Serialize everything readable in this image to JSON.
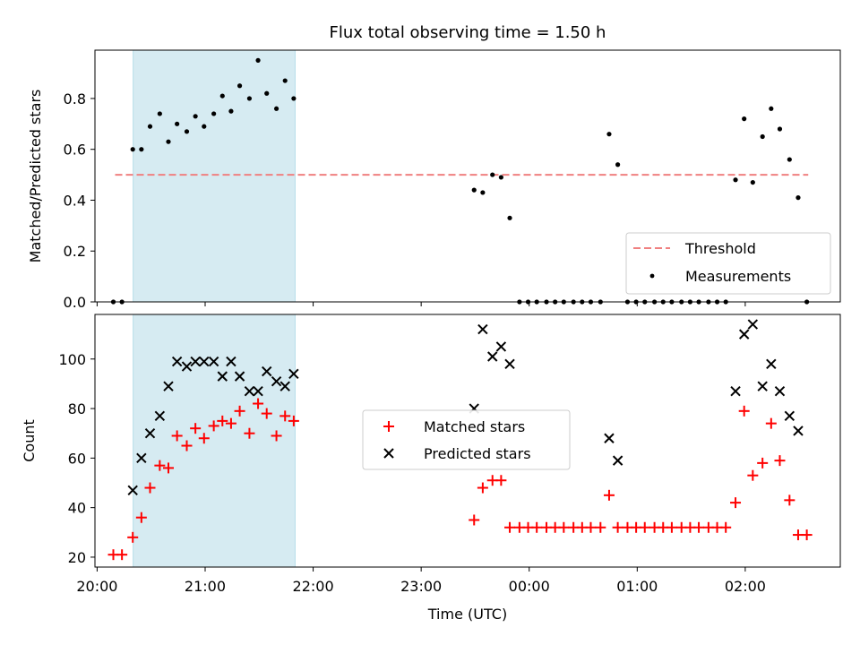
{
  "chart_data": [
    {
      "type": "scatter",
      "title": "Flux total observing time = 1.50 h",
      "ylabel": "Matched/Predicted stars",
      "xlabel": "",
      "ylim": [
        0.0,
        0.99
      ],
      "yticks": [
        "0.0",
        "0.2",
        "0.4",
        "0.6",
        "0.8"
      ],
      "xlim_hours": [
        19.98,
        26.88
      ],
      "xticks": [
        "20:00",
        "21:00",
        "22:00",
        "23:00",
        "00:00",
        "01:00",
        "02:00"
      ],
      "shaded_span": {
        "start": "20:20",
        "end": "21:50"
      },
      "threshold": {
        "name": "Threshold",
        "value": 0.5,
        "from": "20:10",
        "to": "02:35",
        "color": "#f08080"
      },
      "legend_position": "lower right",
      "series": [
        {
          "name": "Measurements",
          "color": "#000000",
          "points": [
            [
              20.15,
              0.0
            ],
            [
              20.23,
              0.0
            ],
            [
              20.33,
              0.6
            ],
            [
              20.41,
              0.6
            ],
            [
              20.49,
              0.69
            ],
            [
              20.58,
              0.74
            ],
            [
              20.66,
              0.63
            ],
            [
              20.74,
              0.7
            ],
            [
              20.83,
              0.67
            ],
            [
              20.91,
              0.73
            ],
            [
              20.99,
              0.69
            ],
            [
              21.08,
              0.74
            ],
            [
              21.16,
              0.81
            ],
            [
              21.24,
              0.75
            ],
            [
              21.32,
              0.85
            ],
            [
              21.41,
              0.8
            ],
            [
              21.49,
              0.95
            ],
            [
              21.57,
              0.82
            ],
            [
              21.66,
              0.76
            ],
            [
              21.74,
              0.87
            ],
            [
              21.82,
              0.8
            ],
            [
              23.49,
              0.44
            ],
            [
              23.57,
              0.43
            ],
            [
              23.66,
              0.5
            ],
            [
              23.74,
              0.49
            ],
            [
              23.82,
              0.33
            ],
            [
              23.91,
              0.0
            ],
            [
              23.99,
              0.0
            ],
            [
              24.07,
              0.0
            ],
            [
              24.16,
              0.0
            ],
            [
              24.24,
              0.0
            ],
            [
              24.32,
              0.0
            ],
            [
              24.41,
              0.0
            ],
            [
              24.49,
              0.0
            ],
            [
              24.57,
              0.0
            ],
            [
              24.66,
              0.0
            ],
            [
              24.74,
              0.66
            ],
            [
              24.82,
              0.54
            ],
            [
              24.91,
              0.0
            ],
            [
              24.99,
              0.0
            ],
            [
              25.07,
              0.0
            ],
            [
              25.16,
              0.0
            ],
            [
              25.24,
              0.0
            ],
            [
              25.32,
              0.0
            ],
            [
              25.41,
              0.0
            ],
            [
              25.49,
              0.0
            ],
            [
              25.57,
              0.0
            ],
            [
              25.66,
              0.0
            ],
            [
              25.74,
              0.0
            ],
            [
              25.82,
              0.0
            ],
            [
              25.91,
              0.48
            ],
            [
              25.99,
              0.72
            ],
            [
              26.07,
              0.47
            ],
            [
              26.16,
              0.65
            ],
            [
              26.24,
              0.76
            ],
            [
              26.32,
              0.68
            ],
            [
              26.41,
              0.56
            ],
            [
              26.49,
              0.41
            ],
            [
              26.57,
              0.0
            ]
          ]
        }
      ]
    },
    {
      "type": "scatter",
      "title": "",
      "ylabel": "Count",
      "xlabel": "Time (UTC)",
      "ylim": [
        16.0,
        118.0
      ],
      "yticks": [
        "20",
        "40",
        "60",
        "80",
        "100"
      ],
      "xlim_hours": [
        19.98,
        26.88
      ],
      "xticks": [
        "20:00",
        "21:00",
        "22:00",
        "23:00",
        "00:00",
        "01:00",
        "02:00"
      ],
      "shaded_span": {
        "start": "20:20",
        "end": "21:50"
      },
      "legend_position": "center",
      "series": [
        {
          "name": "Matched stars",
          "color": "#ff0000",
          "marker": "+",
          "points": [
            [
              20.15,
              21
            ],
            [
              20.23,
              21
            ],
            [
              20.33,
              28
            ],
            [
              20.41,
              36
            ],
            [
              20.49,
              48
            ],
            [
              20.58,
              57
            ],
            [
              20.66,
              56
            ],
            [
              20.74,
              69
            ],
            [
              20.83,
              65
            ],
            [
              20.91,
              72
            ],
            [
              20.99,
              68
            ],
            [
              21.08,
              73
            ],
            [
              21.16,
              75
            ],
            [
              21.24,
              74
            ],
            [
              21.32,
              79
            ],
            [
              21.41,
              70
            ],
            [
              21.49,
              82
            ],
            [
              21.57,
              78
            ],
            [
              21.66,
              69
            ],
            [
              21.74,
              77
            ],
            [
              21.82,
              75
            ],
            [
              23.49,
              35
            ],
            [
              23.57,
              48
            ],
            [
              23.66,
              51
            ],
            [
              23.74,
              51
            ],
            [
              23.82,
              32
            ],
            [
              23.91,
              32
            ],
            [
              23.99,
              32
            ],
            [
              24.07,
              32
            ],
            [
              24.16,
              32
            ],
            [
              24.24,
              32
            ],
            [
              24.32,
              32
            ],
            [
              24.41,
              32
            ],
            [
              24.49,
              32
            ],
            [
              24.57,
              32
            ],
            [
              24.66,
              32
            ],
            [
              24.74,
              45
            ],
            [
              24.82,
              32
            ],
            [
              24.91,
              32
            ],
            [
              24.99,
              32
            ],
            [
              25.07,
              32
            ],
            [
              25.16,
              32
            ],
            [
              25.24,
              32
            ],
            [
              25.32,
              32
            ],
            [
              25.41,
              32
            ],
            [
              25.49,
              32
            ],
            [
              25.57,
              32
            ],
            [
              25.66,
              32
            ],
            [
              25.74,
              32
            ],
            [
              25.82,
              32
            ],
            [
              25.91,
              42
            ],
            [
              25.99,
              79
            ],
            [
              26.07,
              53
            ],
            [
              26.16,
              58
            ],
            [
              26.24,
              74
            ],
            [
              26.32,
              59
            ],
            [
              26.41,
              43
            ],
            [
              26.49,
              29
            ],
            [
              26.57,
              29
            ]
          ]
        },
        {
          "name": "Predicted stars",
          "color": "#000000",
          "marker": "x",
          "points": [
            [
              20.33,
              47
            ],
            [
              20.41,
              60
            ],
            [
              20.49,
              70
            ],
            [
              20.58,
              77
            ],
            [
              20.66,
              89
            ],
            [
              20.74,
              99
            ],
            [
              20.83,
              97
            ],
            [
              20.91,
              99
            ],
            [
              20.99,
              99
            ],
            [
              21.08,
              99
            ],
            [
              21.16,
              93
            ],
            [
              21.24,
              99
            ],
            [
              21.32,
              93
            ],
            [
              21.41,
              87
            ],
            [
              21.49,
              87
            ],
            [
              21.57,
              95
            ],
            [
              21.66,
              91
            ],
            [
              21.74,
              89
            ],
            [
              21.82,
              94
            ],
            [
              23.49,
              80
            ],
            [
              23.57,
              112
            ],
            [
              23.66,
              101
            ],
            [
              23.74,
              105
            ],
            [
              23.82,
              98
            ],
            [
              24.74,
              68
            ],
            [
              24.82,
              59
            ],
            [
              25.91,
              87
            ],
            [
              25.99,
              110
            ],
            [
              26.07,
              114
            ],
            [
              26.16,
              89
            ],
            [
              26.24,
              98
            ],
            [
              26.32,
              87
            ],
            [
              26.41,
              77
            ],
            [
              26.49,
              71
            ]
          ]
        }
      ]
    }
  ]
}
